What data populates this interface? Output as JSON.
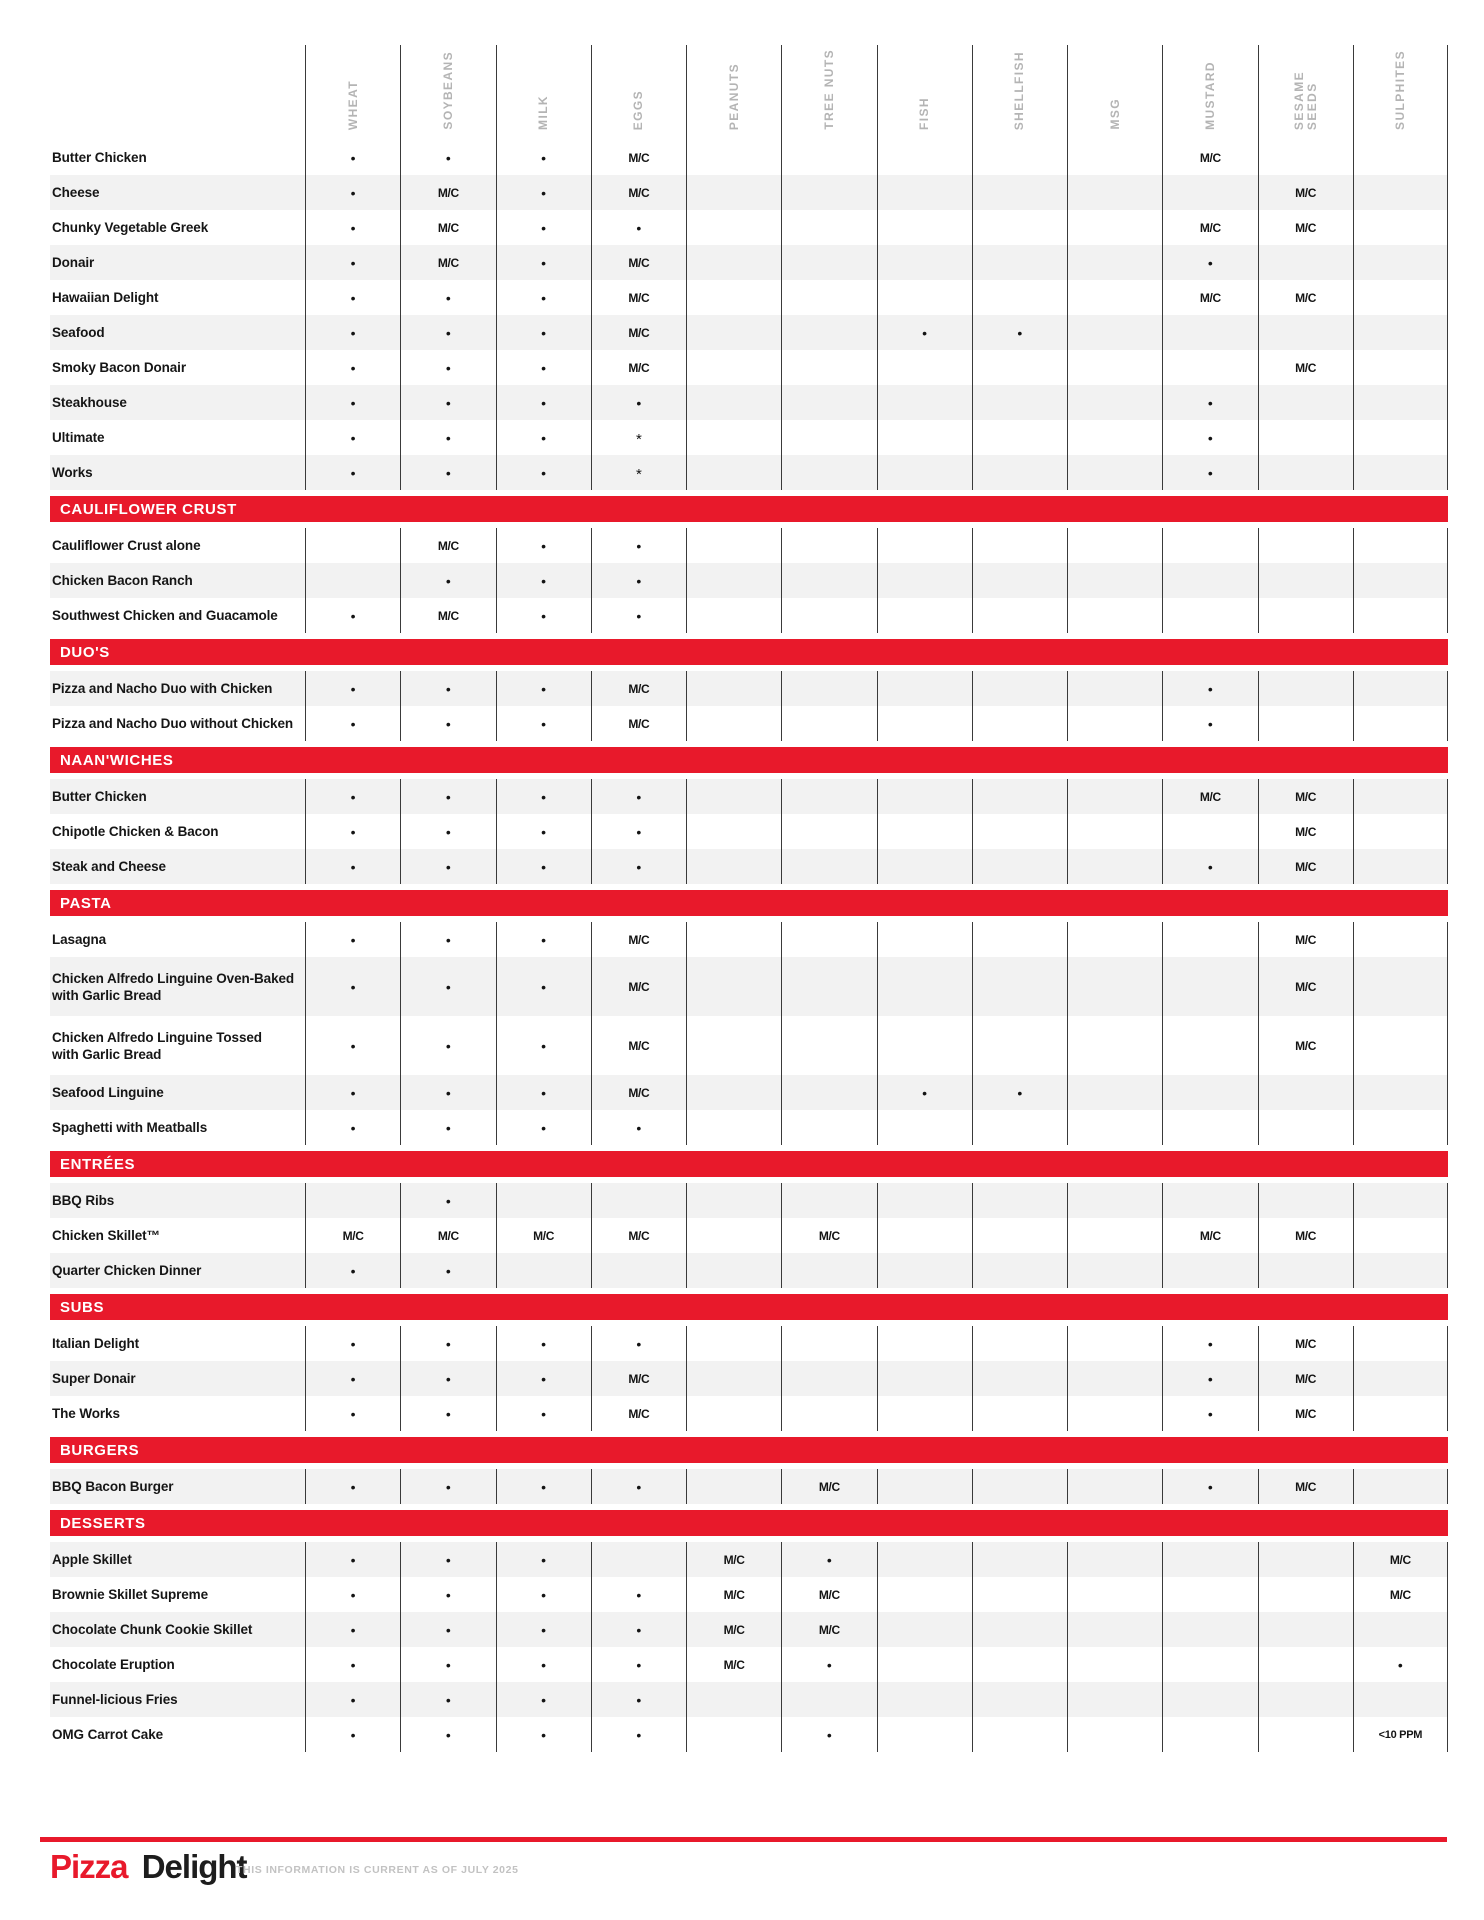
{
  "colors": {
    "accent_red": "#e8192b",
    "stripe_gray": "#f2f2f2",
    "line": "#3a3a3a",
    "header_text": "#b4b4b4"
  },
  "columns": [
    "WHEAT",
    "SOYBEANS",
    "MILK",
    "EGGS",
    "PEANUTS",
    "TREE NUTS",
    "FISH",
    "SHELLFISH",
    "MSG",
    "MUSTARD",
    "SESAME\nSEEDS",
    "SULPHITES"
  ],
  "sections": [
    {
      "title": "",
      "stripe_start": "white",
      "rows": [
        {
          "name": "Butter Chicken",
          "cells": [
            "•",
            "•",
            "•",
            "M/C",
            "",
            "",
            "",
            "",
            "",
            "M/C",
            "",
            ""
          ]
        },
        {
          "name": "Cheese",
          "cells": [
            "•",
            "M/C",
            "•",
            "M/C",
            "",
            "",
            "",
            "",
            "",
            "",
            "M/C",
            ""
          ]
        },
        {
          "name": "Chunky Vegetable Greek",
          "cells": [
            "•",
            "M/C",
            "•",
            "•",
            "",
            "",
            "",
            "",
            "",
            "M/C",
            "M/C",
            ""
          ]
        },
        {
          "name": "Donair",
          "cells": [
            "•",
            "M/C",
            "•",
            "M/C",
            "",
            "",
            "",
            "",
            "",
            "•",
            "",
            ""
          ]
        },
        {
          "name": "Hawaiian Delight",
          "cells": [
            "•",
            "•",
            "•",
            "M/C",
            "",
            "",
            "",
            "",
            "",
            "M/C",
            "M/C",
            ""
          ]
        },
        {
          "name": "Seafood",
          "cells": [
            "•",
            "•",
            "•",
            "M/C",
            "",
            "",
            "•",
            "•",
            "",
            "",
            "",
            ""
          ]
        },
        {
          "name": "Smoky Bacon Donair",
          "cells": [
            "•",
            "•",
            "•",
            "M/C",
            "",
            "",
            "",
            "",
            "",
            "",
            "M/C",
            ""
          ]
        },
        {
          "name": "Steakhouse",
          "cells": [
            "•",
            "•",
            "•",
            "•",
            "",
            "",
            "",
            "",
            "",
            "•",
            "",
            ""
          ]
        },
        {
          "name": "Ultimate",
          "cells": [
            "•",
            "•",
            "•",
            "*",
            "",
            "",
            "",
            "",
            "",
            "•",
            "",
            ""
          ]
        },
        {
          "name": "Works",
          "cells": [
            "•",
            "•",
            "•",
            "*",
            "",
            "",
            "",
            "",
            "",
            "•",
            "",
            ""
          ]
        }
      ]
    },
    {
      "title": "CAULIFLOWER CRUST",
      "stripe_start": "white",
      "rows": [
        {
          "name": "Cauliflower Crust alone",
          "cells": [
            "",
            "M/C",
            "•",
            "•",
            "",
            "",
            "",
            "",
            "",
            "",
            "",
            ""
          ]
        },
        {
          "name": "Chicken Bacon Ranch",
          "cells": [
            "",
            "•",
            "•",
            "•",
            "",
            "",
            "",
            "",
            "",
            "",
            "",
            ""
          ]
        },
        {
          "name": "Southwest Chicken and Guacamole",
          "cells": [
            "•",
            "M/C",
            "•",
            "•",
            "",
            "",
            "",
            "",
            "",
            "",
            "",
            ""
          ]
        }
      ]
    },
    {
      "title": "DUO'S",
      "stripe_start": "gray",
      "rows": [
        {
          "name": "Pizza and Nacho Duo with Chicken",
          "cells": [
            "•",
            "•",
            "•",
            "M/C",
            "",
            "",
            "",
            "",
            "",
            "•",
            "",
            ""
          ]
        },
        {
          "name": "Pizza and Nacho Duo without Chicken",
          "cells": [
            "•",
            "•",
            "•",
            "M/C",
            "",
            "",
            "",
            "",
            "",
            "•",
            "",
            ""
          ]
        }
      ]
    },
    {
      "title": "NAAN'WICHES",
      "stripe_start": "gray",
      "rows": [
        {
          "name": "Butter Chicken",
          "cells": [
            "•",
            "•",
            "•",
            "•",
            "",
            "",
            "",
            "",
            "",
            "M/C",
            "M/C",
            ""
          ]
        },
        {
          "name": "Chipotle Chicken & Bacon",
          "cells": [
            "•",
            "•",
            "•",
            "•",
            "",
            "",
            "",
            "",
            "",
            "",
            "M/C",
            ""
          ]
        },
        {
          "name": "Steak and Cheese",
          "cells": [
            "•",
            "•",
            "•",
            "•",
            "",
            "",
            "",
            "",
            "",
            "•",
            "M/C",
            ""
          ]
        }
      ]
    },
    {
      "title": "PASTA",
      "stripe_start": "white",
      "rows": [
        {
          "name": "Lasagna",
          "cells": [
            "•",
            "•",
            "•",
            "M/C",
            "",
            "",
            "",
            "",
            "",
            "",
            "M/C",
            ""
          ]
        },
        {
          "name": "Chicken Alfredo Linguine Oven-Baked\nwith Garlic Bread",
          "cells": [
            "•",
            "•",
            "•",
            "M/C",
            "",
            "",
            "",
            "",
            "",
            "",
            "M/C",
            ""
          ]
        },
        {
          "name": "Chicken Alfredo Linguine Tossed\nwith Garlic Bread",
          "cells": [
            "•",
            "•",
            "•",
            "M/C",
            "",
            "",
            "",
            "",
            "",
            "",
            "M/C",
            ""
          ]
        },
        {
          "name": "Seafood Linguine",
          "cells": [
            "•",
            "•",
            "•",
            "M/C",
            "",
            "",
            "•",
            "•",
            "",
            "",
            "",
            ""
          ]
        },
        {
          "name": "Spaghetti with Meatballs",
          "cells": [
            "•",
            "•",
            "•",
            "•",
            "",
            "",
            "",
            "",
            "",
            "",
            "",
            ""
          ]
        }
      ]
    },
    {
      "title": "ENTRÉES",
      "stripe_start": "gray",
      "rows": [
        {
          "name": "BBQ Ribs",
          "cells": [
            "",
            "•",
            "",
            "",
            "",
            "",
            "",
            "",
            "",
            "",
            "",
            ""
          ]
        },
        {
          "name": "Chicken Skillet™",
          "cells": [
            "M/C",
            "M/C",
            "M/C",
            "M/C",
            "",
            "M/C",
            "",
            "",
            "",
            "M/C",
            "M/C",
            ""
          ]
        },
        {
          "name": "Quarter Chicken Dinner",
          "cells": [
            "•",
            "•",
            "",
            "",
            "",
            "",
            "",
            "",
            "",
            "",
            "",
            ""
          ]
        }
      ]
    },
    {
      "title": "SUBS",
      "stripe_start": "white",
      "rows": [
        {
          "name": "Italian Delight",
          "cells": [
            "•",
            "•",
            "•",
            "•",
            "",
            "",
            "",
            "",
            "",
            "•",
            "M/C",
            ""
          ]
        },
        {
          "name": "Super Donair",
          "cells": [
            "•",
            "•",
            "•",
            "M/C",
            "",
            "",
            "",
            "",
            "",
            "•",
            "M/C",
            ""
          ]
        },
        {
          "name": "The Works",
          "cells": [
            "•",
            "•",
            "•",
            "M/C",
            "",
            "",
            "",
            "",
            "",
            "•",
            "M/C",
            ""
          ]
        }
      ]
    },
    {
      "title": "BURGERS",
      "stripe_start": "gray",
      "rows": [
        {
          "name": "BBQ Bacon Burger",
          "cells": [
            "•",
            "•",
            "•",
            "•",
            "",
            "M/C",
            "",
            "",
            "",
            "•",
            "M/C",
            ""
          ]
        }
      ]
    },
    {
      "title": "DESSERTS",
      "stripe_start": "gray",
      "rows": [
        {
          "name": "Apple Skillet",
          "cells": [
            "•",
            "•",
            "•",
            "",
            "M/C",
            "•",
            "",
            "",
            "",
            "",
            "",
            "M/C"
          ]
        },
        {
          "name": "Brownie Skillet Supreme",
          "cells": [
            "•",
            "•",
            "•",
            "•",
            "M/C",
            "M/C",
            "",
            "",
            "",
            "",
            "",
            "M/C"
          ]
        },
        {
          "name": "Chocolate Chunk Cookie Skillet",
          "cells": [
            "•",
            "•",
            "•",
            "•",
            "M/C",
            "M/C",
            "",
            "",
            "",
            "",
            "",
            ""
          ]
        },
        {
          "name": "Chocolate Eruption",
          "cells": [
            "•",
            "•",
            "•",
            "•",
            "M/C",
            "•",
            "",
            "",
            "",
            "",
            "",
            "•"
          ]
        },
        {
          "name": "Funnel-licious Fries",
          "cells": [
            "•",
            "•",
            "•",
            "•",
            "",
            "",
            "",
            "",
            "",
            "",
            "",
            ""
          ]
        },
        {
          "name": "OMG Carrot Cake",
          "cells": [
            "•",
            "•",
            "•",
            "•",
            "",
            "•",
            "",
            "",
            "",
            "",
            "",
            "<10 PPM"
          ]
        }
      ]
    }
  ],
  "footer": {
    "brand_primary": "Pizza",
    "brand_secondary": "Delight",
    "note": "THIS INFORMATION IS CURRENT AS OF JULY 2025"
  }
}
